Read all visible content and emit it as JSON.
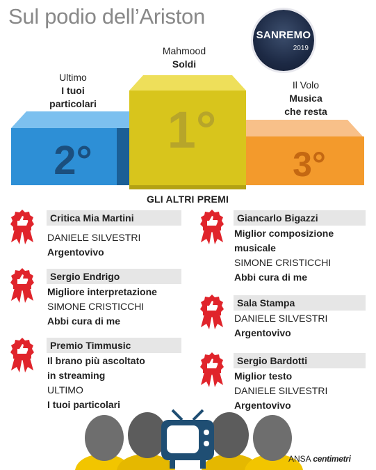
{
  "title": "Sul podio dell’Ariston",
  "logo": {
    "name": "SANREMO",
    "year": "2019"
  },
  "podium": {
    "first": {
      "place": "1°",
      "artist": "Mahmood",
      "song": "Soldi",
      "color": "#d8c51c"
    },
    "second": {
      "place": "2°",
      "artist": "Ultimo",
      "song_lines": [
        "I tuoi",
        "particolari"
      ],
      "color": "#2d8fd6"
    },
    "third": {
      "place": "3°",
      "artist": "Il Volo",
      "song_lines": [
        "Musica",
        "che resta"
      ],
      "color": "#f39a2c"
    }
  },
  "other_prizes_title": "GLI ALTRI PREMI",
  "prizes_left": [
    {
      "name": "Critica Mia Martini",
      "lines": [
        {
          "text": "DANIELE SILVESTRI",
          "bold": false
        },
        {
          "text": "Argentovivo",
          "bold": true
        }
      ]
    },
    {
      "name": "Sergio Endrigo",
      "lines": [
        {
          "text": "Migliore interpretazione",
          "bold": true
        },
        {
          "text": "SIMONE CRISTICCHI",
          "bold": false
        },
        {
          "text": "Abbi cura di me",
          "bold": true
        }
      ]
    },
    {
      "name": "Premio Timmusic",
      "lines": [
        {
          "text": "Il brano più ascoltato",
          "bold": true
        },
        {
          "text": "in streaming",
          "bold": true
        },
        {
          "text": "ULTIMO",
          "bold": false
        },
        {
          "text": "I tuoi particolari",
          "bold": true
        }
      ]
    }
  ],
  "prizes_right": [
    {
      "name": "Giancarlo Bigazzi",
      "lines": [
        {
          "text": "Miglior composizione",
          "bold": true
        },
        {
          "text": "musicale",
          "bold": true
        },
        {
          "text": "SIMONE CRISTICCHI",
          "bold": false
        },
        {
          "text": "Abbi cura di me",
          "bold": true
        }
      ]
    },
    {
      "name": "Sala Stampa",
      "lines": [
        {
          "text": "DANIELE SILVESTRI",
          "bold": false
        },
        {
          "text": "Argentovivo",
          "bold": true
        }
      ]
    },
    {
      "name": "Sergio Bardotti",
      "lines": [
        {
          "text": "Miglior testo",
          "bold": true
        },
        {
          "text": "DANIELE SILVESTRI",
          "bold": false
        },
        {
          "text": "Argentovivo",
          "bold": true
        }
      ]
    }
  ],
  "credit": {
    "agency": "ANSA",
    "brand": "centimetri"
  },
  "colors": {
    "award_red": "#e0242b",
    "tv_blue": "#1f4e73",
    "head_gray": "#6e6e6e",
    "shirt_yellow": "#f2c500"
  }
}
